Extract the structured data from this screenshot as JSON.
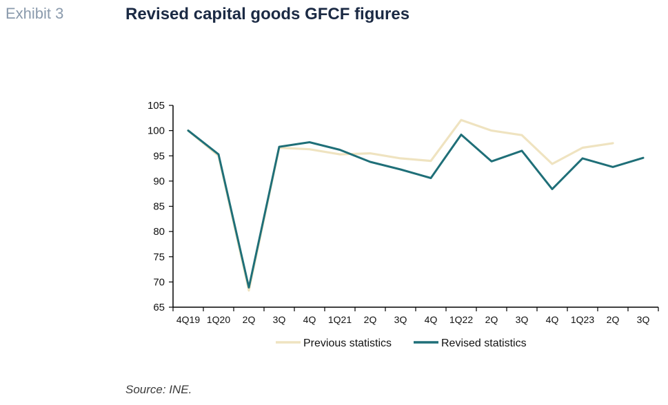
{
  "header": {
    "exhibit_label": "Exhibit 3",
    "title": "Revised capital goods GFCF figures"
  },
  "footer": {
    "source": "Source: INE."
  },
  "chart_data": {
    "type": "line",
    "title": "Revised capital goods GFCF figures",
    "xlabel": "",
    "ylabel": "",
    "ylim": [
      65,
      105
    ],
    "yticks": [
      65,
      70,
      75,
      80,
      85,
      90,
      95,
      100,
      105
    ],
    "categories": [
      "4Q19",
      "1Q20",
      "2Q",
      "3Q",
      "4Q",
      "1Q21",
      "2Q",
      "3Q",
      "4Q",
      "1Q22",
      "2Q",
      "3Q",
      "4Q",
      "1Q23",
      "2Q",
      "3Q"
    ],
    "legend_position": "bottom",
    "series": [
      {
        "name": "Previous statistics",
        "color": "#efe3c0",
        "values": [
          100.0,
          95.0,
          68.3,
          96.6,
          96.3,
          95.3,
          95.5,
          94.5,
          94.0,
          102.1,
          100.0,
          99.1,
          93.4,
          96.6,
          97.5,
          null
        ]
      },
      {
        "name": "Revised statistics",
        "color": "#1f6f78",
        "values": [
          100.0,
          95.3,
          68.9,
          96.8,
          97.7,
          96.2,
          93.8,
          92.3,
          90.6,
          99.2,
          93.9,
          96.0,
          88.4,
          94.5,
          92.8,
          94.6
        ]
      }
    ]
  }
}
